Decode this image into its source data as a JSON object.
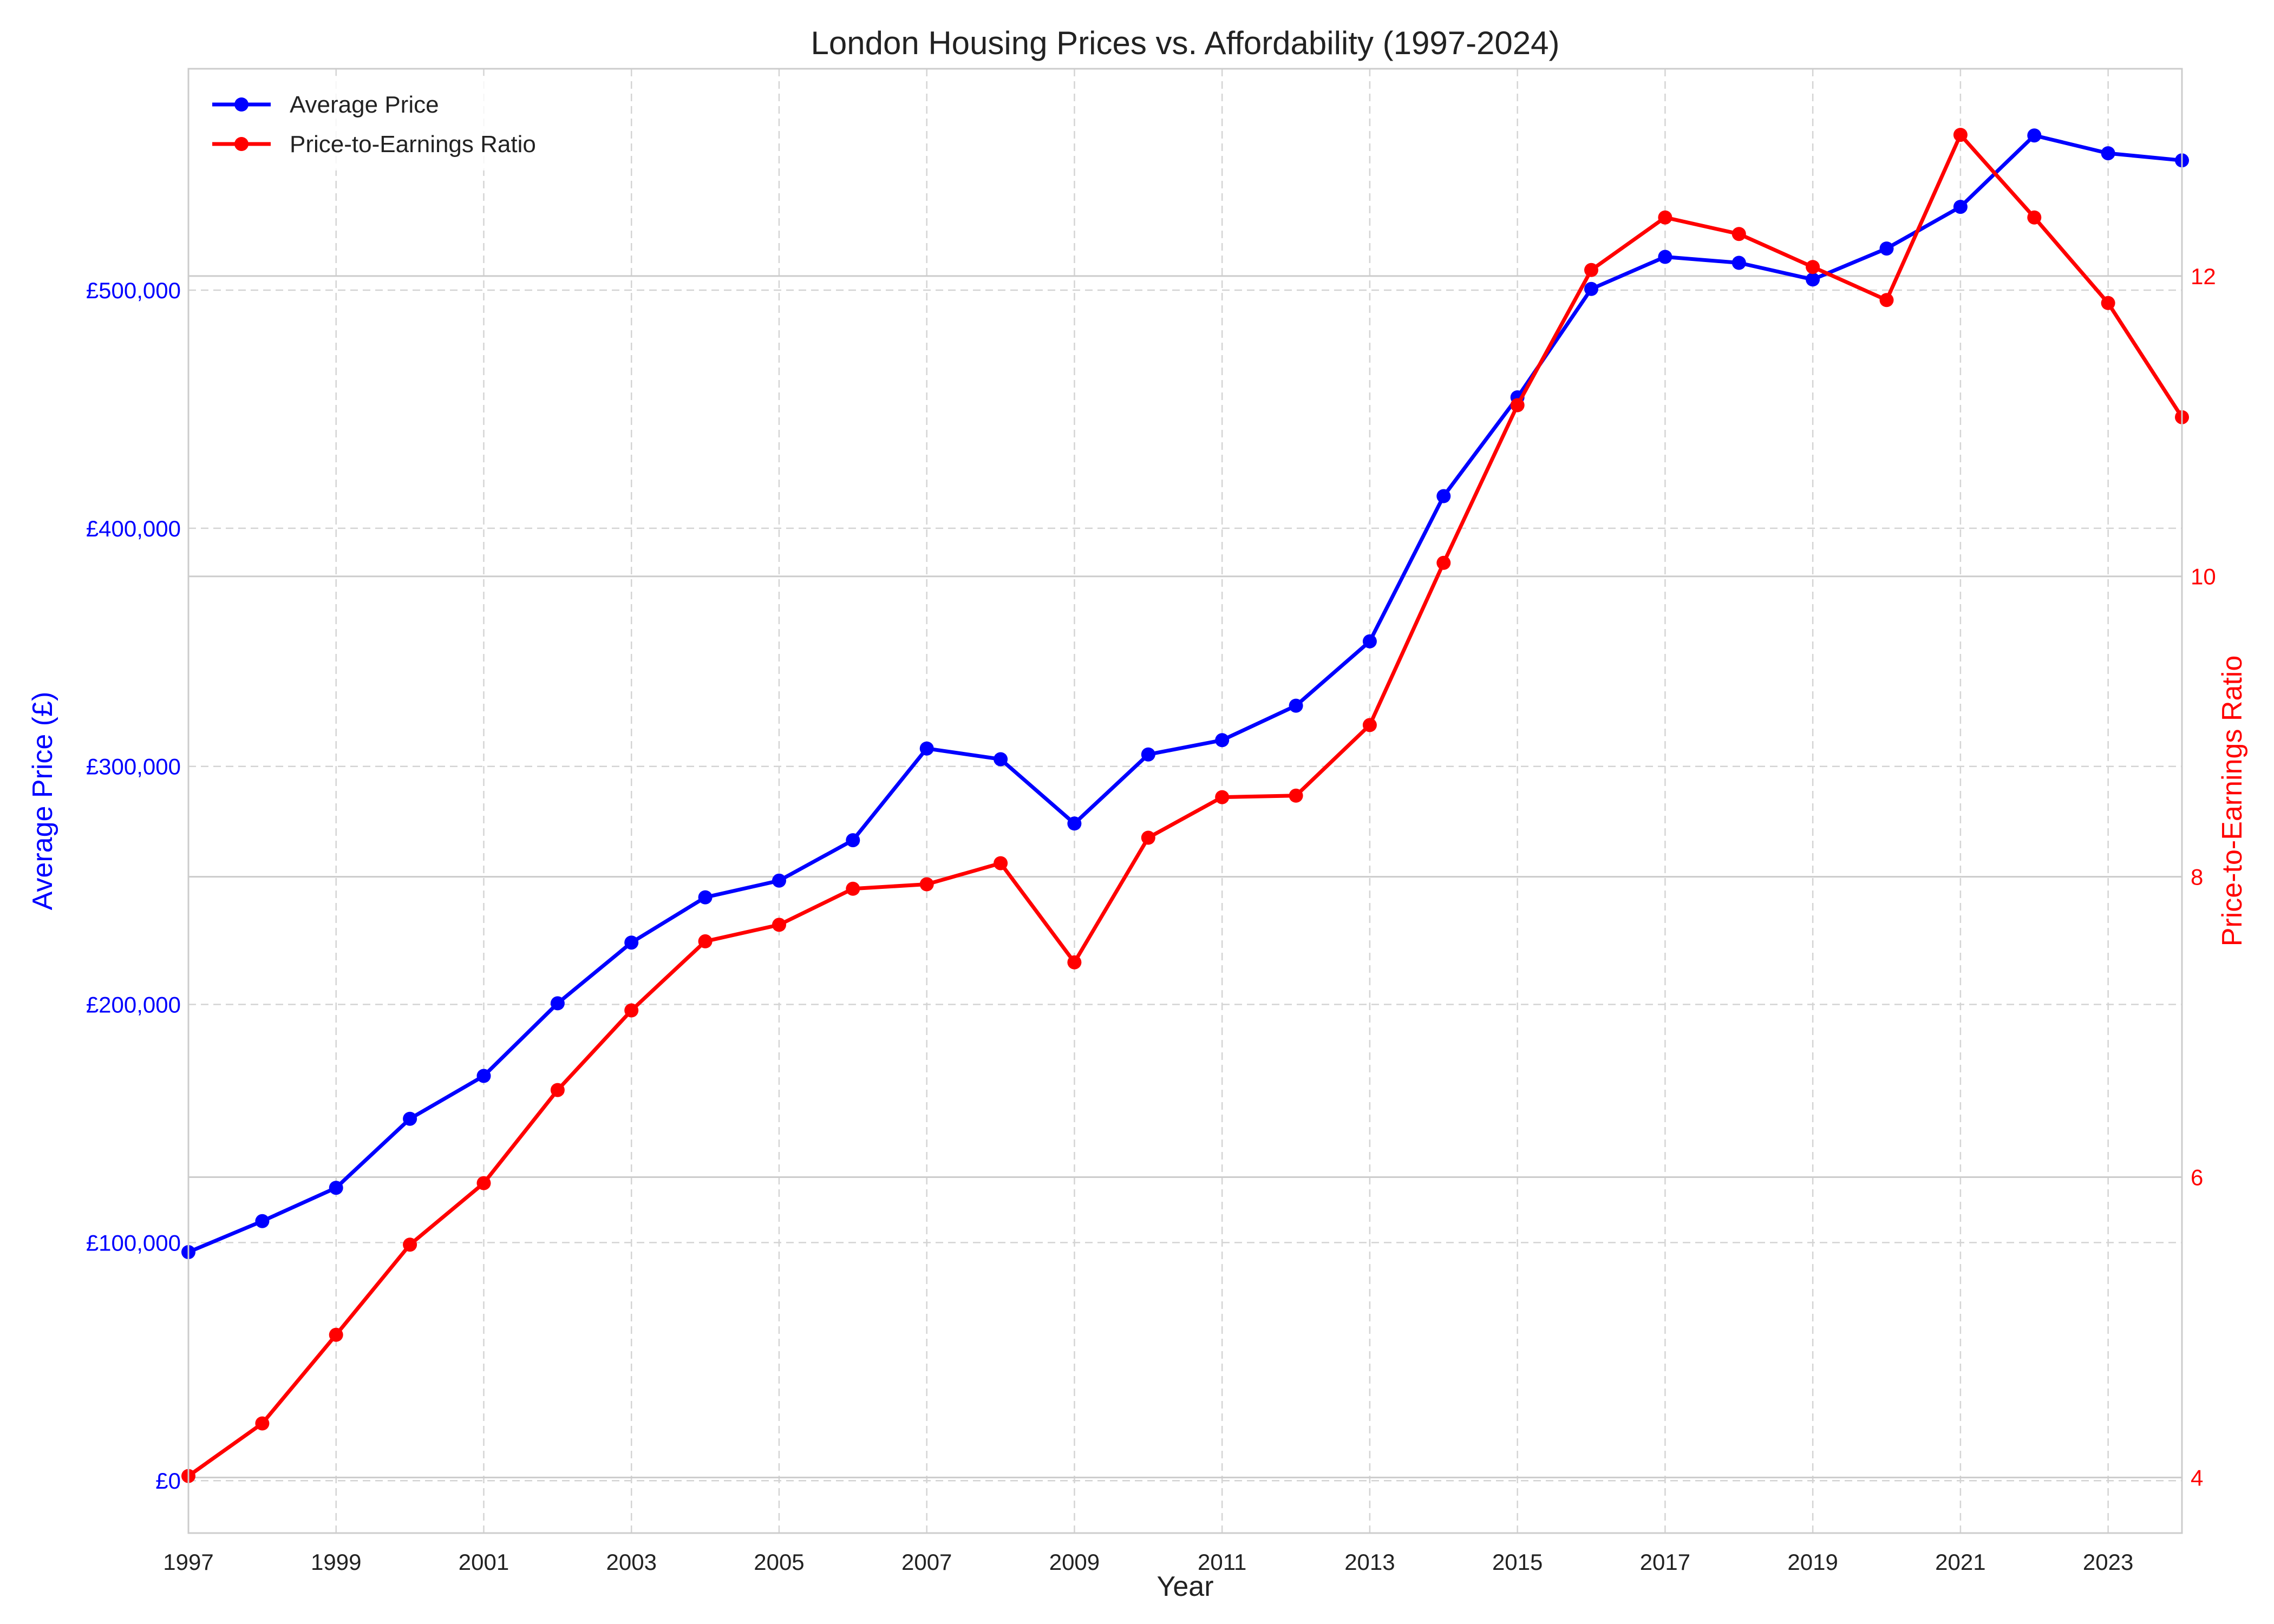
{
  "chart_data": {
    "type": "line",
    "title": "London Housing Prices vs. Affordability (1997-2024)",
    "xlabel": "Year",
    "ylabel_left": "Average Price (£)",
    "ylabel_right": "Price-to-Earnings Ratio",
    "x": [
      1997,
      1998,
      1999,
      2000,
      2001,
      2002,
      2003,
      2004,
      2005,
      2006,
      2007,
      2008,
      2009,
      2010,
      2011,
      2012,
      2013,
      2014,
      2015,
      2016,
      2017,
      2018,
      2019,
      2020,
      2021,
      2022,
      2023,
      2024
    ],
    "xlim": [
      1997,
      2024
    ],
    "x_ticks": [
      "1997",
      "1999",
      "2001",
      "2003",
      "2005",
      "2007",
      "2009",
      "2011",
      "2013",
      "2015",
      "2017",
      "2019",
      "2021",
      "2023"
    ],
    "left_axis": {
      "ylim": [
        -22000,
        593000
      ],
      "ticks": [
        0,
        100000,
        200000,
        300000,
        400000,
        500000
      ],
      "tick_labels": [
        "£0",
        "£100,000",
        "£200,000",
        "£300,000",
        "£400,000",
        "£500,000"
      ],
      "color": "#0000ff"
    },
    "right_axis": {
      "ylim": [
        3.63,
        13.38
      ],
      "ticks": [
        4,
        6,
        8,
        10,
        12
      ],
      "tick_labels": [
        "4",
        "6",
        "8",
        "10",
        "12"
      ],
      "color": "#ff0000"
    },
    "series": [
      {
        "name": "Average Price",
        "axis": "left",
        "color": "#0000ff",
        "values": [
          96000,
          109000,
          123000,
          152000,
          170000,
          200500,
          226000,
          245000,
          252000,
          269000,
          307500,
          303000,
          276000,
          305000,
          311000,
          325500,
          352500,
          413500,
          455000,
          500500,
          514000,
          511500,
          504500,
          517500,
          535000,
          565000,
          557500,
          554500
        ]
      },
      {
        "name": "Price-to-Earnings Ratio",
        "axis": "right",
        "color": "#ff0000",
        "values": [
          4.01,
          4.36,
          4.95,
          5.55,
          5.96,
          6.58,
          7.11,
          7.57,
          7.68,
          7.92,
          7.95,
          8.09,
          7.43,
          8.26,
          8.53,
          8.54,
          9.01,
          10.09,
          11.14,
          12.04,
          12.39,
          12.28,
          12.06,
          11.84,
          12.94,
          12.39,
          11.82,
          11.06
        ]
      }
    ],
    "legend_position": "top-left",
    "grid": true
  }
}
